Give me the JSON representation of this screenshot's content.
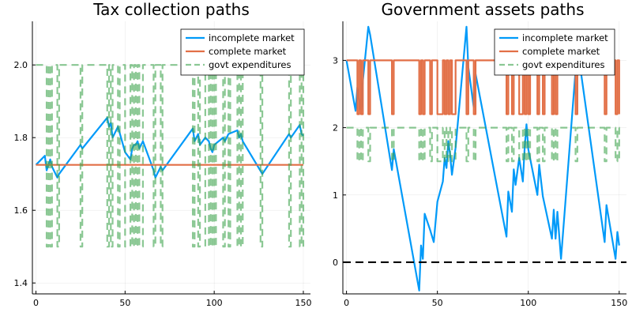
{
  "colors": {
    "incomplete": "#009af9",
    "complete": "#e26f46",
    "expenditure": "#3da44d",
    "zero_line": "#000000"
  },
  "chart_data": [
    {
      "type": "line",
      "title": "Tax collection paths",
      "xlim": [
        -2,
        154
      ],
      "ylim": [
        1.37,
        2.12
      ],
      "xticks": [
        0,
        50,
        100,
        150
      ],
      "xtick_labels": [
        "0",
        "50",
        "100",
        "150"
      ],
      "yticks": [
        1.4,
        1.6,
        1.8,
        2.0
      ],
      "ytick_labels": [
        "1.4",
        "1.6",
        "1.8",
        "2.0"
      ],
      "grid": true,
      "legend_position": "top-right",
      "series": [
        {
          "name": "incomplete market",
          "style": "solid",
          "color_key": "incomplete",
          "points": [
            [
              0,
              1.725
            ],
            [
              5,
              1.75
            ],
            [
              6,
              1.71
            ],
            [
              8,
              1.74
            ],
            [
              9,
              1.72
            ],
            [
              12,
              1.69
            ],
            [
              13,
              1.7
            ],
            [
              25,
              1.78
            ],
            [
              26,
              1.77
            ],
            [
              40,
              1.855
            ],
            [
              41,
              1.83
            ],
            [
              42,
              1.84
            ],
            [
              43,
              1.8
            ],
            [
              46,
              1.83
            ],
            [
              50,
              1.76
            ],
            [
              53,
              1.74
            ],
            [
              54,
              1.77
            ],
            [
              55,
              1.78
            ],
            [
              56,
              1.78
            ],
            [
              57,
              1.79
            ],
            [
              58,
              1.77
            ],
            [
              60,
              1.79
            ],
            [
              66,
              1.71
            ],
            [
              67,
              1.69
            ],
            [
              70,
              1.72
            ],
            [
              71,
              1.71
            ],
            [
              88,
              1.825
            ],
            [
              89,
              1.79
            ],
            [
              91,
              1.81
            ],
            [
              92,
              1.78
            ],
            [
              95,
              1.8
            ],
            [
              97,
              1.79
            ],
            [
              98,
              1.77
            ],
            [
              99,
              1.76
            ],
            [
              100,
              1.78
            ],
            [
              105,
              1.8
            ],
            [
              106,
              1.79
            ],
            [
              108,
              1.81
            ],
            [
              113,
              1.82
            ],
            [
              114,
              1.8
            ],
            [
              115,
              1.81
            ],
            [
              116,
              1.79
            ],
            [
              127,
              1.7
            ],
            [
              142,
              1.81
            ],
            [
              143,
              1.8
            ],
            [
              148,
              1.835
            ],
            [
              149,
              1.81
            ],
            [
              150,
              1.805
            ]
          ]
        },
        {
          "name": "complete market",
          "style": "solid",
          "color_key": "complete",
          "points": [
            [
              0,
              1.725
            ],
            [
              150,
              1.725
            ]
          ]
        },
        {
          "name": "govt expenditures",
          "style": "dashed",
          "color_key": "expenditure",
          "steps": [
            [
              0,
              2.0
            ],
            [
              6,
              1.5
            ],
            [
              7,
              2.0
            ],
            [
              8,
              1.5
            ],
            [
              9,
              2.0
            ],
            [
              12,
              1.5
            ],
            [
              13,
              2.0
            ],
            [
              25,
              1.5
            ],
            [
              26,
              2.0
            ],
            [
              40,
              1.5
            ],
            [
              41,
              2.0
            ],
            [
              42,
              1.5
            ],
            [
              43,
              2.0
            ],
            [
              46,
              1.5
            ],
            [
              47,
              2.0
            ],
            [
              50,
              1.5
            ],
            [
              53,
              2.0
            ],
            [
              54,
              1.5
            ],
            [
              55,
              2.0
            ],
            [
              56,
              1.5
            ],
            [
              57,
              2.0
            ],
            [
              58,
              1.5
            ],
            [
              60,
              2.0
            ],
            [
              66,
              1.5
            ],
            [
              67,
              2.0
            ],
            [
              70,
              1.5
            ],
            [
              71,
              2.0
            ],
            [
              88,
              1.5
            ],
            [
              89,
              2.0
            ],
            [
              91,
              1.5
            ],
            [
              92,
              2.0
            ],
            [
              95,
              1.5
            ],
            [
              97,
              2.0
            ],
            [
              98,
              1.5
            ],
            [
              99,
              2.0
            ],
            [
              100,
              1.5
            ],
            [
              101,
              2.0
            ],
            [
              105,
              1.5
            ],
            [
              106,
              2.0
            ],
            [
              108,
              1.5
            ],
            [
              109,
              2.0
            ],
            [
              113,
              1.5
            ],
            [
              114,
              2.0
            ],
            [
              115,
              1.5
            ],
            [
              116,
              2.0
            ],
            [
              126,
              1.5
            ],
            [
              127,
              2.0
            ],
            [
              142,
              1.5
            ],
            [
              143,
              2.0
            ],
            [
              148,
              1.5
            ],
            [
              149,
              2.0
            ],
            [
              150,
              1.5
            ]
          ]
        }
      ]
    },
    {
      "type": "line",
      "title": "Government assets paths",
      "xlim": [
        -2,
        154
      ],
      "ylim": [
        -0.47,
        3.58
      ],
      "xticks": [
        0,
        50,
        100,
        150
      ],
      "xtick_labels": [
        "0",
        "50",
        "100",
        "150"
      ],
      "yticks": [
        0,
        1,
        2,
        3
      ],
      "ytick_labels": [
        "0",
        "1",
        "2",
        "3"
      ],
      "grid": true,
      "legend_position": "top-right",
      "series": [
        {
          "name": "incomplete market",
          "style": "solid",
          "color_key": "incomplete",
          "points": [
            [
              0,
              3.0
            ],
            [
              5,
              2.25
            ],
            [
              6,
              2.6
            ],
            [
              8,
              2.25
            ],
            [
              9,
              2.7
            ],
            [
              12,
              3.5
            ],
            [
              13,
              3.38
            ],
            [
              25,
              1.37
            ],
            [
              26,
              1.68
            ],
            [
              40,
              -0.42
            ],
            [
              41,
              0.25
            ],
            [
              42,
              0.05
            ],
            [
              43,
              0.72
            ],
            [
              46,
              0.48
            ],
            [
              48,
              0.3
            ],
            [
              50,
              0.9
            ],
            [
              53,
              1.2
            ],
            [
              54,
              1.55
            ],
            [
              55,
              1.4
            ],
            [
              56,
              1.8
            ],
            [
              57,
              1.6
            ],
            [
              58,
              1.3
            ],
            [
              60,
              1.7
            ],
            [
              66,
              3.5
            ],
            [
              67,
              2.9
            ],
            [
              70,
              2.3
            ],
            [
              71,
              2.8
            ],
            [
              88,
              0.38
            ],
            [
              89,
              1.05
            ],
            [
              91,
              0.75
            ],
            [
              92,
              1.38
            ],
            [
              93,
              1.15
            ],
            [
              95,
              1.55
            ],
            [
              97,
              1.2
            ],
            [
              98,
              1.7
            ],
            [
              99,
              2.05
            ],
            [
              100,
              1.68
            ],
            [
              105,
              1.0
            ],
            [
              106,
              1.45
            ],
            [
              108,
              0.98
            ],
            [
              113,
              0.35
            ],
            [
              114,
              0.78
            ],
            [
              115,
              0.35
            ],
            [
              116,
              0.75
            ],
            [
              118,
              0.05
            ],
            [
              127,
              3.2
            ],
            [
              142,
              0.3
            ],
            [
              143,
              0.85
            ],
            [
              148,
              0.05
            ],
            [
              149,
              0.45
            ],
            [
              150,
              0.25
            ]
          ]
        },
        {
          "name": "complete market",
          "style": "solid",
          "color_key": "complete",
          "steps": [
            [
              0,
              3.0
            ],
            [
              6,
              2.2
            ],
            [
              7,
              3.0
            ],
            [
              8,
              2.2
            ],
            [
              9,
              3.0
            ],
            [
              12,
              2.2
            ],
            [
              13,
              3.0
            ],
            [
              25,
              2.2
            ],
            [
              26,
              3.0
            ],
            [
              40,
              2.2
            ],
            [
              41,
              3.0
            ],
            [
              42,
              2.2
            ],
            [
              43,
              3.0
            ],
            [
              46,
              2.2
            ],
            [
              47,
              3.0
            ],
            [
              50,
              2.2
            ],
            [
              53,
              3.0
            ],
            [
              54,
              2.2
            ],
            [
              55,
              3.0
            ],
            [
              56,
              2.2
            ],
            [
              57,
              3.0
            ],
            [
              58,
              2.2
            ],
            [
              60,
              3.0
            ],
            [
              66,
              2.2
            ],
            [
              67,
              3.0
            ],
            [
              70,
              2.2
            ],
            [
              71,
              3.0
            ],
            [
              88,
              2.2
            ],
            [
              89,
              3.0
            ],
            [
              91,
              2.2
            ],
            [
              92,
              3.0
            ],
            [
              95,
              2.2
            ],
            [
              97,
              3.0
            ],
            [
              98,
              2.2
            ],
            [
              99,
              3.0
            ],
            [
              100,
              2.2
            ],
            [
              101,
              3.0
            ],
            [
              105,
              2.2
            ],
            [
              106,
              3.0
            ],
            [
              108,
              2.2
            ],
            [
              109,
              3.0
            ],
            [
              113,
              2.2
            ],
            [
              114,
              3.0
            ],
            [
              115,
              2.2
            ],
            [
              116,
              3.0
            ],
            [
              126,
              2.2
            ],
            [
              127,
              3.0
            ],
            [
              142,
              2.2
            ],
            [
              143,
              3.0
            ],
            [
              148,
              2.2
            ],
            [
              149,
              3.0
            ],
            [
              150,
              2.2
            ]
          ]
        },
        {
          "name": "govt expenditures",
          "style": "dashed",
          "color_key": "expenditure",
          "steps": [
            [
              0,
              2.0
            ],
            [
              6,
              1.5
            ],
            [
              7,
              2.0
            ],
            [
              8,
              1.5
            ],
            [
              9,
              2.0
            ],
            [
              12,
              1.5
            ],
            [
              13,
              2.0
            ],
            [
              25,
              1.5
            ],
            [
              26,
              2.0
            ],
            [
              40,
              1.5
            ],
            [
              41,
              2.0
            ],
            [
              42,
              1.5
            ],
            [
              43,
              2.0
            ],
            [
              46,
              1.5
            ],
            [
              47,
              2.0
            ],
            [
              50,
              1.5
            ],
            [
              53,
              2.0
            ],
            [
              54,
              1.5
            ],
            [
              55,
              2.0
            ],
            [
              56,
              1.5
            ],
            [
              57,
              2.0
            ],
            [
              58,
              1.5
            ],
            [
              60,
              2.0
            ],
            [
              66,
              1.5
            ],
            [
              67,
              2.0
            ],
            [
              70,
              1.5
            ],
            [
              71,
              2.0
            ],
            [
              88,
              1.5
            ],
            [
              89,
              2.0
            ],
            [
              91,
              1.5
            ],
            [
              92,
              2.0
            ],
            [
              95,
              1.5
            ],
            [
              97,
              2.0
            ],
            [
              98,
              1.5
            ],
            [
              99,
              2.0
            ],
            [
              100,
              1.5
            ],
            [
              101,
              2.0
            ],
            [
              105,
              1.5
            ],
            [
              106,
              2.0
            ],
            [
              108,
              1.5
            ],
            [
              109,
              2.0
            ],
            [
              113,
              1.5
            ],
            [
              114,
              2.0
            ],
            [
              115,
              1.5
            ],
            [
              116,
              2.0
            ],
            [
              126,
              1.5
            ],
            [
              127,
              2.0
            ],
            [
              142,
              1.5
            ],
            [
              143,
              2.0
            ],
            [
              148,
              1.5
            ],
            [
              149,
              2.0
            ],
            [
              150,
              1.5
            ]
          ]
        },
        {
          "name": "",
          "style": "dashed",
          "color_key": "zero_line",
          "in_legend": false,
          "points": [
            [
              -2,
              0
            ],
            [
              154,
              0
            ]
          ]
        }
      ]
    }
  ]
}
